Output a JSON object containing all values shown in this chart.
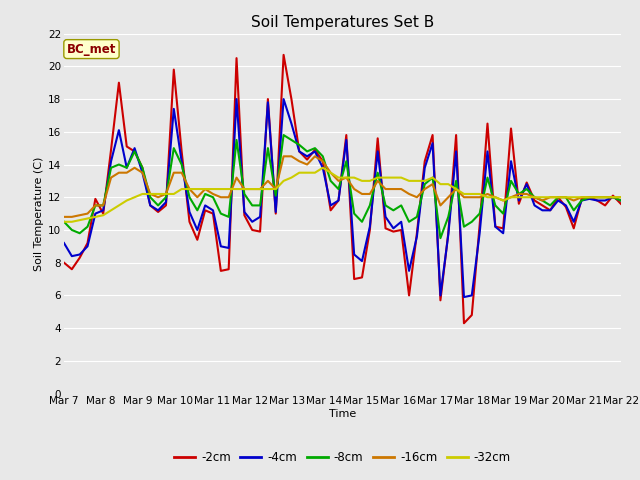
{
  "title": "Soil Temperatures Set B",
  "xlabel": "Time",
  "ylabel": "Soil Temperature (C)",
  "annotation": "BC_met",
  "ylim": [
    0,
    22
  ],
  "yticks": [
    0,
    2,
    4,
    6,
    8,
    10,
    12,
    14,
    16,
    18,
    20,
    22
  ],
  "x_labels": [
    "Mar 7",
    "Mar 8",
    "Mar 9",
    "Mar 10",
    "Mar 11",
    "Mar 12",
    "Mar 13",
    "Mar 14",
    "Mar 15",
    "Mar 16",
    "Mar 17",
    "Mar 18",
    "Mar 19",
    "Mar 20",
    "Mar 21",
    "Mar 22"
  ],
  "series": {
    "-2cm": {
      "color": "#cc0000",
      "lw": 1.5,
      "y": [
        8.0,
        7.6,
        8.3,
        9.2,
        11.9,
        11.0,
        14.9,
        19.0,
        15.1,
        14.8,
        13.8,
        11.5,
        11.1,
        11.5,
        19.8,
        14.8,
        10.5,
        9.4,
        11.2,
        11.0,
        7.5,
        7.6,
        20.5,
        10.9,
        10.0,
        9.9,
        18.0,
        11.0,
        20.7,
        18.0,
        14.8,
        14.3,
        14.9,
        14.2,
        11.2,
        11.8,
        15.8,
        7.0,
        7.1,
        10.0,
        15.6,
        10.1,
        9.9,
        10.0,
        6.0,
        9.8,
        14.2,
        15.8,
        5.7,
        9.8,
        15.8,
        4.3,
        4.8,
        10.3,
        16.5,
        10.2,
        10.1,
        16.2,
        11.6,
        12.9,
        11.8,
        11.5,
        11.2,
        12.0,
        11.4,
        10.1,
        11.9,
        12.0,
        11.8,
        11.5,
        12.1,
        11.6
      ]
    },
    "-4cm": {
      "color": "#0000cc",
      "lw": 1.5,
      "y": [
        9.2,
        8.4,
        8.5,
        9.0,
        11.0,
        11.2,
        14.2,
        16.1,
        13.8,
        15.0,
        13.5,
        11.5,
        11.2,
        11.7,
        17.4,
        14.2,
        11.1,
        10.0,
        11.5,
        11.2,
        9.0,
        8.9,
        18.0,
        11.1,
        10.5,
        10.8,
        17.8,
        11.1,
        18.0,
        16.5,
        14.8,
        14.5,
        14.8,
        13.8,
        11.5,
        11.8,
        15.5,
        8.5,
        8.1,
        10.2,
        14.8,
        10.8,
        10.1,
        10.5,
        7.5,
        9.6,
        13.8,
        15.3,
        6.0,
        9.7,
        14.8,
        5.9,
        6.0,
        9.8,
        14.8,
        10.2,
        9.8,
        14.2,
        11.8,
        12.8,
        11.5,
        11.2,
        11.2,
        11.8,
        11.5,
        10.5,
        11.8,
        11.9,
        11.8,
        11.8,
        12.0,
        11.8
      ]
    },
    "-8cm": {
      "color": "#00aa00",
      "lw": 1.5,
      "y": [
        10.5,
        10.0,
        9.8,
        10.2,
        11.5,
        11.5,
        13.8,
        14.0,
        13.8,
        14.8,
        13.8,
        12.0,
        11.5,
        12.0,
        15.0,
        14.0,
        12.0,
        11.2,
        12.2,
        12.0,
        11.0,
        10.8,
        15.5,
        12.2,
        11.5,
        11.5,
        15.0,
        12.1,
        15.8,
        15.5,
        15.2,
        14.8,
        15.0,
        14.5,
        13.0,
        12.5,
        14.2,
        11.0,
        10.5,
        11.5,
        13.5,
        11.5,
        11.2,
        11.5,
        10.5,
        10.8,
        12.8,
        13.2,
        9.5,
        10.8,
        13.0,
        10.2,
        10.5,
        11.0,
        13.2,
        11.5,
        11.0,
        13.0,
        12.2,
        12.5,
        12.0,
        11.8,
        11.5,
        12.0,
        12.0,
        11.2,
        11.8,
        12.0,
        12.0,
        12.0,
        12.0,
        11.8
      ]
    },
    "-16cm": {
      "color": "#cc7700",
      "lw": 1.5,
      "y": [
        10.8,
        10.8,
        10.9,
        11.0,
        11.5,
        11.5,
        13.2,
        13.5,
        13.5,
        13.8,
        13.5,
        12.2,
        12.0,
        12.2,
        13.5,
        13.5,
        12.5,
        12.0,
        12.5,
        12.2,
        12.0,
        12.0,
        13.2,
        12.5,
        12.5,
        12.5,
        13.0,
        12.5,
        14.5,
        14.5,
        14.2,
        14.0,
        14.5,
        14.2,
        13.5,
        13.0,
        13.2,
        12.5,
        12.2,
        12.2,
        13.0,
        12.5,
        12.5,
        12.5,
        12.2,
        12.0,
        12.5,
        12.8,
        11.5,
        12.0,
        12.5,
        12.0,
        12.0,
        12.0,
        12.2,
        12.0,
        11.8,
        12.0,
        12.2,
        12.2,
        12.0,
        11.8,
        12.0,
        12.0,
        12.0,
        11.8,
        12.0,
        12.0,
        12.0,
        12.0,
        12.0,
        12.0
      ]
    },
    "-32cm": {
      "color": "#cccc00",
      "lw": 1.5,
      "y": [
        10.5,
        10.5,
        10.6,
        10.7,
        10.8,
        10.9,
        11.2,
        11.5,
        11.8,
        12.0,
        12.2,
        12.2,
        12.2,
        12.2,
        12.2,
        12.5,
        12.5,
        12.5,
        12.5,
        12.5,
        12.5,
        12.5,
        12.5,
        12.5,
        12.5,
        12.5,
        12.5,
        12.5,
        13.0,
        13.2,
        13.5,
        13.5,
        13.5,
        13.8,
        13.5,
        13.2,
        13.2,
        13.2,
        13.0,
        13.0,
        13.2,
        13.2,
        13.2,
        13.2,
        13.0,
        13.0,
        13.0,
        13.2,
        12.8,
        12.8,
        12.5,
        12.2,
        12.2,
        12.2,
        12.0,
        12.0,
        11.8,
        12.0,
        12.0,
        12.0,
        12.0,
        12.0,
        12.0,
        12.0,
        12.0,
        12.0,
        12.0,
        12.0,
        12.0,
        12.0,
        12.0,
        12.0
      ]
    }
  },
  "bg_color": "#e8e8e8",
  "plot_bg_color": "#e8e8e8",
  "grid_color": "#ffffff",
  "title_fontsize": 11,
  "label_fontsize": 8,
  "tick_fontsize": 7.5,
  "annot_fontsize": 8.5
}
